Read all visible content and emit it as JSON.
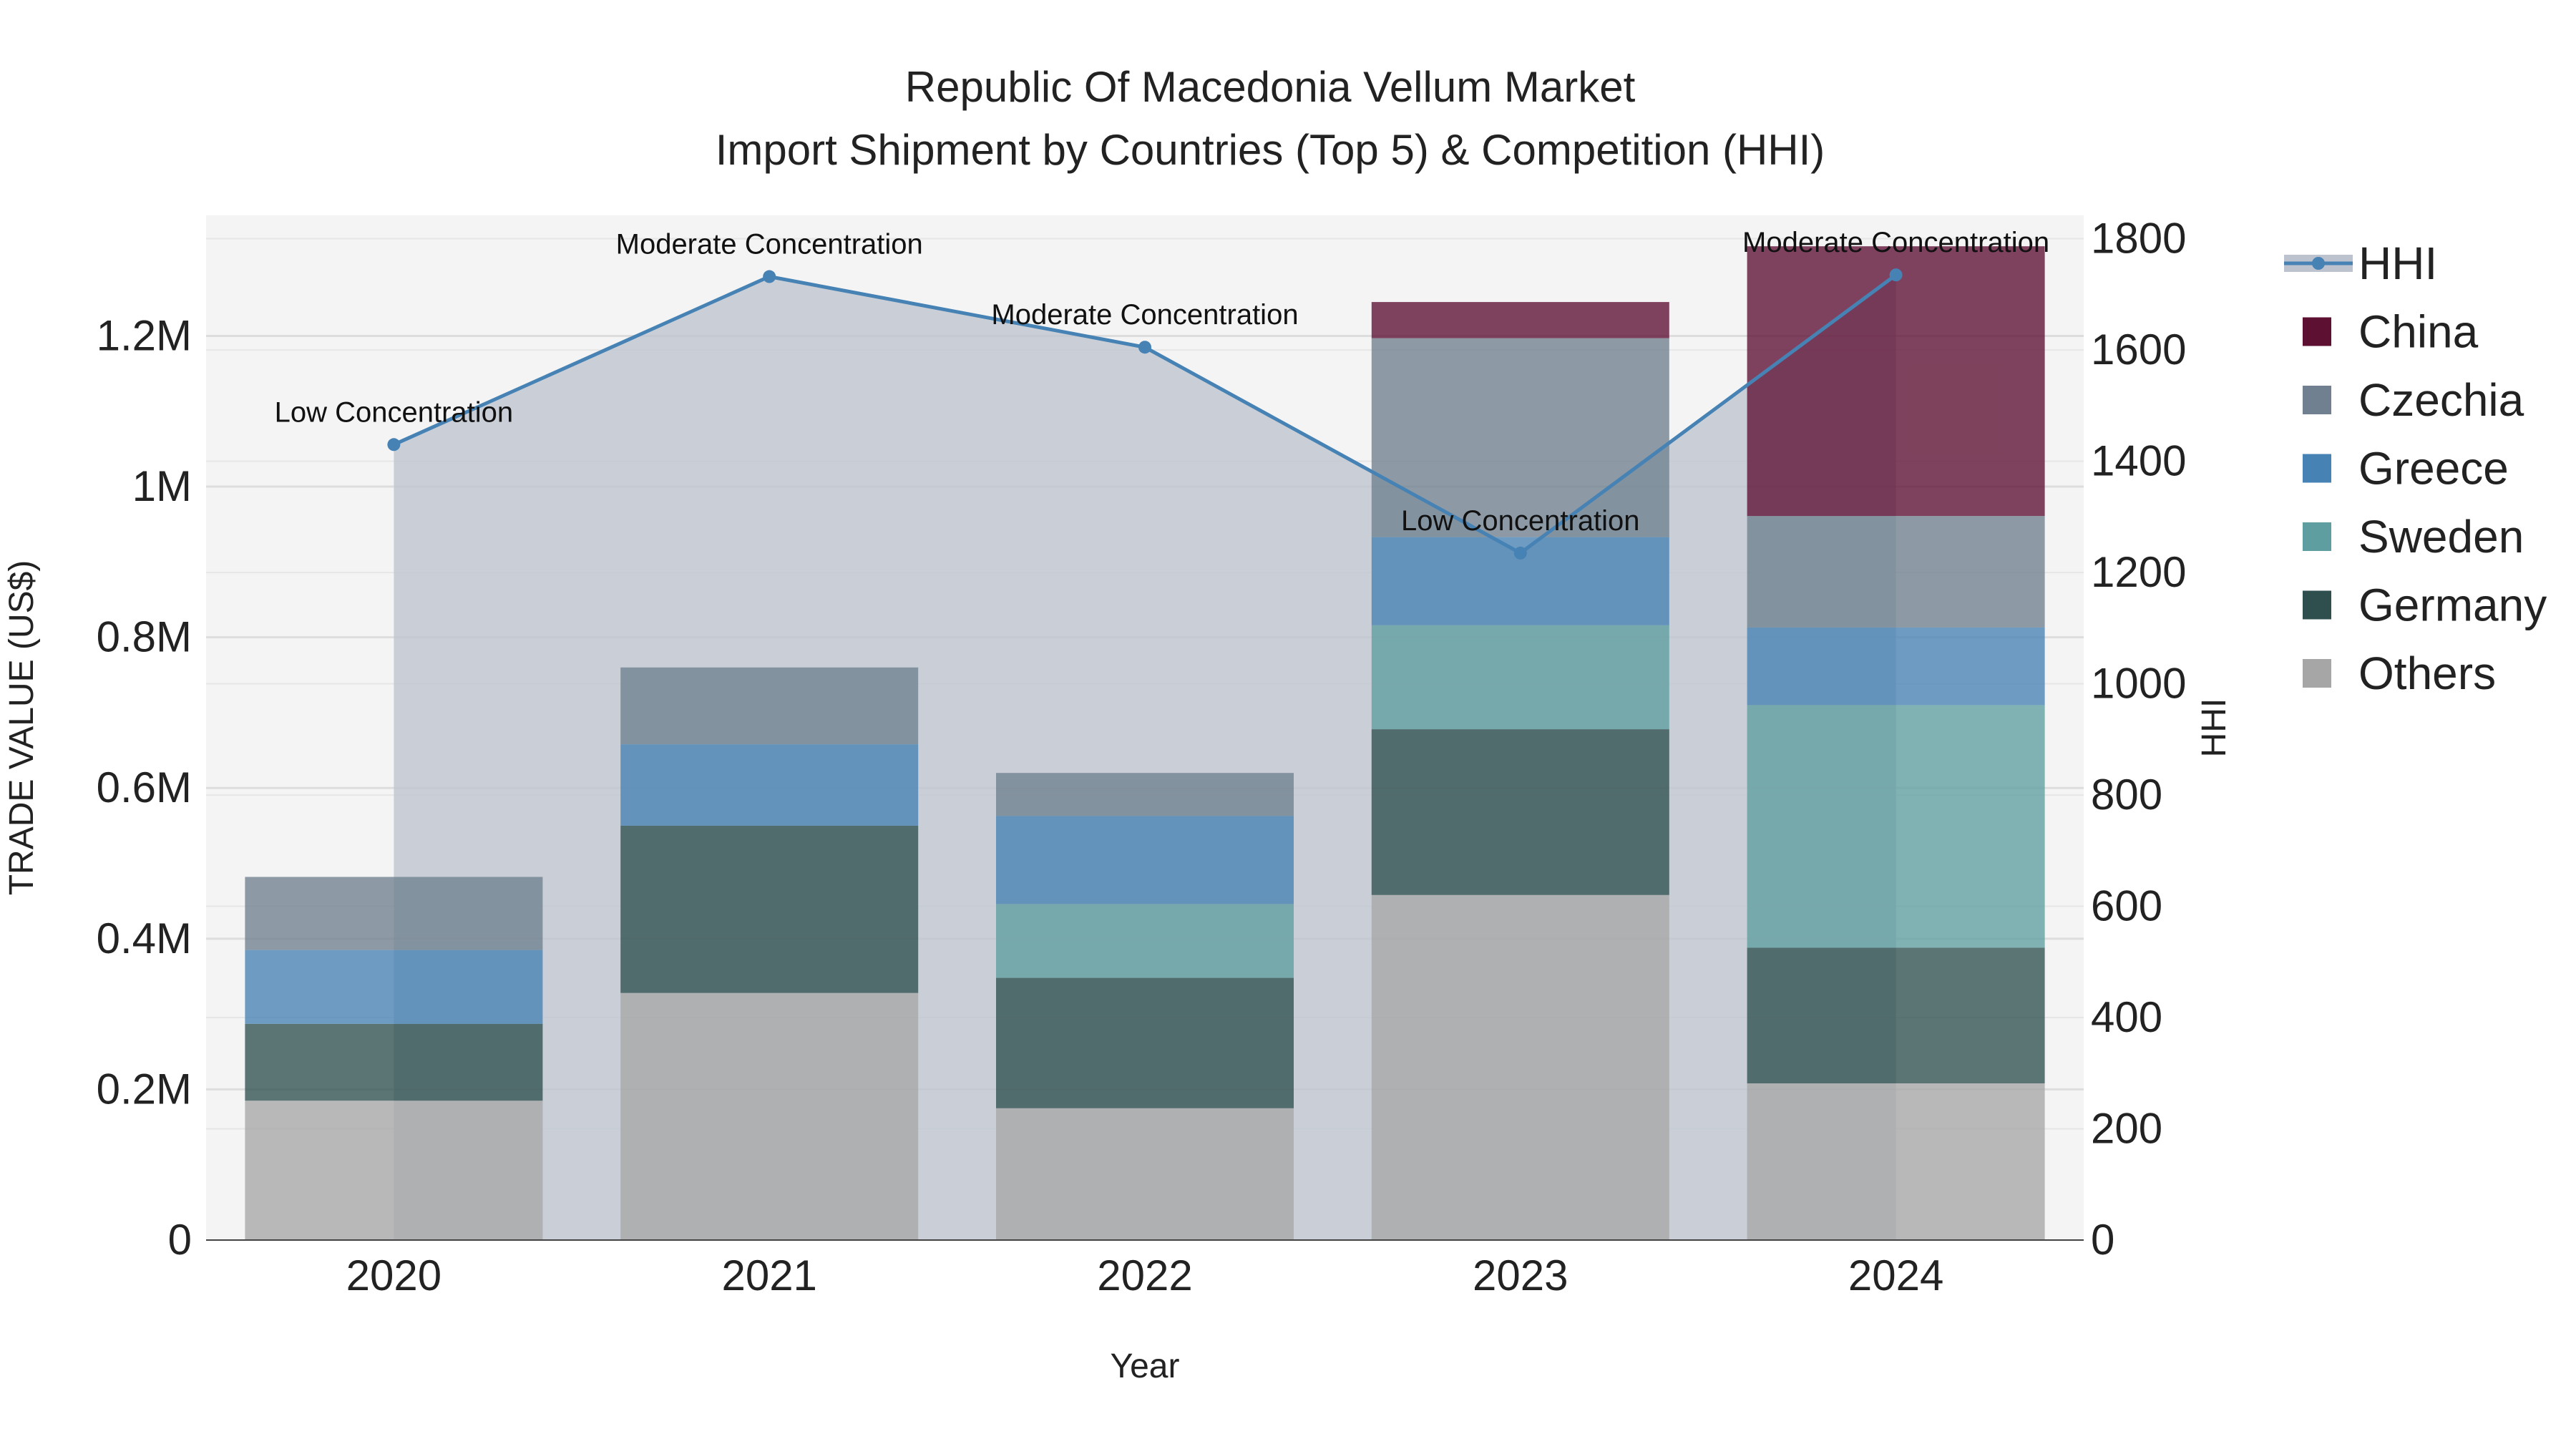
{
  "chart_data": {
    "type": "bar",
    "stacked": true,
    "title_line1": "Republic Of Macedonia Vellum Market",
    "title_line2": "Import Shipment by Countries (Top 5) & Competition (HHI)",
    "xlabel": "Year",
    "ylabel": "TRADE VALUE (US$)",
    "y2label": "HHI",
    "categories": [
      "2020",
      "2021",
      "2022",
      "2023",
      "2024"
    ],
    "ylim": [
      0,
      1360000
    ],
    "y2lim": [
      0,
      1842
    ],
    "yticks": [
      {
        "value": 0,
        "label": "0"
      },
      {
        "value": 200000,
        "label": "0.2M"
      },
      {
        "value": 400000,
        "label": "0.4M"
      },
      {
        "value": 600000,
        "label": "0.6M"
      },
      {
        "value": 800000,
        "label": "0.8M"
      },
      {
        "value": 1000000,
        "label": "1M"
      },
      {
        "value": 1200000,
        "label": "1.2M"
      }
    ],
    "y2ticks": [
      {
        "value": 0,
        "label": "0"
      },
      {
        "value": 200,
        "label": "200"
      },
      {
        "value": 400,
        "label": "400"
      },
      {
        "value": 600,
        "label": "600"
      },
      {
        "value": 800,
        "label": "800"
      },
      {
        "value": 1000,
        "label": "1000"
      },
      {
        "value": 1200,
        "label": "1200"
      },
      {
        "value": 1400,
        "label": "1400"
      },
      {
        "value": 1600,
        "label": "1600"
      },
      {
        "value": 1800,
        "label": "1800"
      }
    ],
    "series": [
      {
        "name": "Others",
        "color": "#a6a6a6",
        "values": [
          185000,
          328000,
          175000,
          458000,
          208000
        ]
      },
      {
        "name": "Germany",
        "color": "#2f4f4f",
        "values": [
          102000,
          222000,
          173000,
          220000,
          180000
        ]
      },
      {
        "name": "Sweden",
        "color": "#5f9ea0",
        "values": [
          0,
          0,
          98000,
          138000,
          322000
        ]
      },
      {
        "name": "Greece",
        "color": "#4682b4",
        "values": [
          98000,
          108000,
          117000,
          117000,
          103000
        ]
      },
      {
        "name": "Czechia",
        "color": "#708090",
        "values": [
          97000,
          102000,
          57000,
          264000,
          148000
        ]
      },
      {
        "name": "China",
        "color": "#5e1033",
        "values": [
          0,
          0,
          0,
          48000,
          358000
        ]
      }
    ],
    "hhi": {
      "name": "HHI",
      "color": "#4682b4",
      "values": [
        1430,
        1732,
        1605,
        1235,
        1735
      ],
      "annotations": [
        "Low Concentration",
        "Moderate Concentration",
        "Moderate Concentration",
        "Low Concentration",
        "Moderate Concentration"
      ]
    },
    "legend": [
      "HHI",
      "China",
      "Czechia",
      "Greece",
      "Sweden",
      "Germany",
      "Others"
    ],
    "legend_position": "right"
  }
}
